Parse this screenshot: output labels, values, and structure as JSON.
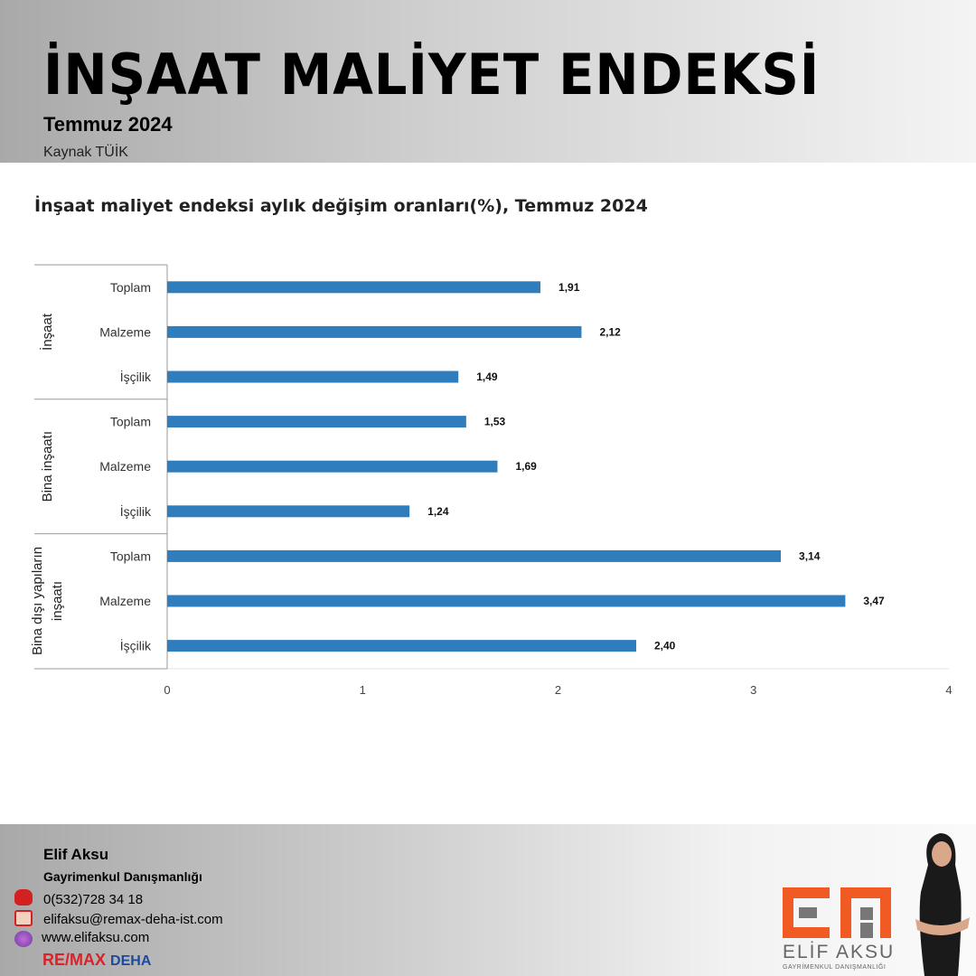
{
  "header": {
    "title": "İNŞAAT MALİYET ENDEKSİ",
    "subtitle": "Temmuz 2024",
    "source": "Kaynak TÜİK"
  },
  "chart_data": {
    "type": "bar",
    "orientation": "horizontal",
    "title": "İnşaat maliyet endeksi aylık değişim oranları(%), Temmuz 2024",
    "groups": [
      {
        "name": "İnşaat",
        "categories": [
          "Toplam",
          "Malzeme",
          "İşçilik"
        ],
        "values": [
          1.91,
          2.12,
          1.49
        ],
        "labels": [
          "1,91",
          "2,12",
          "1,49"
        ]
      },
      {
        "name": "Bina inşaatı",
        "categories": [
          "Toplam",
          "Malzeme",
          "İşçilik"
        ],
        "values": [
          1.53,
          1.69,
          1.24
        ],
        "labels": [
          "1,53",
          "1,69",
          "1,24"
        ]
      },
      {
        "name": "Bina dışı yapıların inşaatı",
        "name_lines": [
          "Bina dışı yapıların",
          "inşaatı"
        ],
        "categories": [
          "Toplam",
          "Malzeme",
          "İşçilik"
        ],
        "values": [
          3.14,
          3.47,
          2.4
        ],
        "labels": [
          "3,14",
          "3,47",
          "2,40"
        ]
      }
    ],
    "xlim": [
      0,
      4
    ],
    "xticks": [
      "0",
      "1",
      "2",
      "3",
      "4"
    ],
    "bar_color": "#2f7dbd",
    "grid": false
  },
  "footer": {
    "name": "Elif Aksu",
    "role": "Gayrimenkul Danışmanlığı",
    "phone": "0(532)728 34 18",
    "email": "elifaksu@remax-deha-ist.com",
    "web": "www.elifaksu.com",
    "brand_a": "RE/MAX",
    "brand_b": "DEHA",
    "logo_text": "ELİF AKSU",
    "logo_sub": "GAYRİMENKUL DANIŞMANLIĞI",
    "logo_color": "#f15a22"
  }
}
